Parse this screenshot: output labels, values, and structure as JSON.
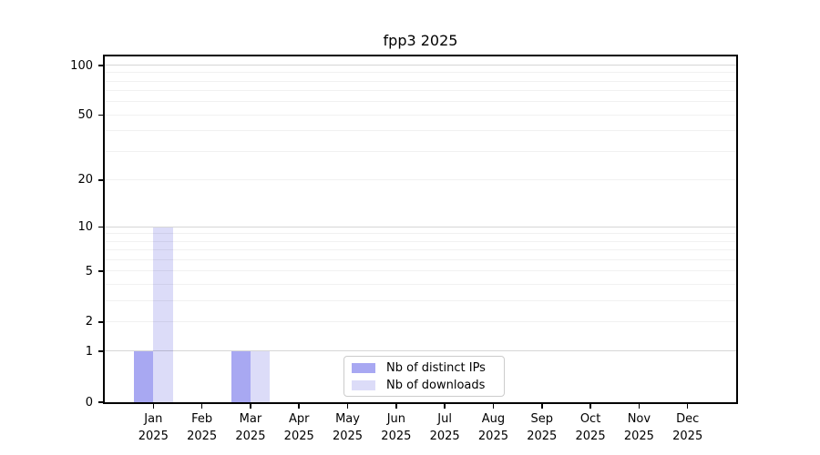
{
  "figure": {
    "background": "#ffffff"
  },
  "chart_data": {
    "type": "bar",
    "title": "fpp3 2025",
    "categories": [
      "Jan",
      "Feb",
      "Mar",
      "Apr",
      "May",
      "Jun",
      "Jul",
      "Aug",
      "Sep",
      "Oct",
      "Nov",
      "Dec"
    ],
    "category_year": "2025",
    "series": [
      {
        "name": "Nb of distinct IPs",
        "color": "#a8a8f2",
        "values": [
          1,
          0,
          1,
          0,
          0,
          0,
          0,
          0,
          0,
          0,
          0,
          0
        ]
      },
      {
        "name": "Nb of downloads",
        "color": "#dcdcf8",
        "values": [
          10,
          0,
          1,
          0,
          0,
          0,
          0,
          0,
          0,
          0,
          0,
          0
        ]
      }
    ],
    "xlabel": "",
    "ylabel": "",
    "y_scale": "log1p",
    "y_ticks": [
      0,
      1,
      2,
      5,
      10,
      20,
      50,
      100
    ],
    "ylim": [
      0,
      113
    ],
    "grid": true,
    "grid_values": [
      1,
      2,
      3,
      4,
      5,
      6,
      7,
      8,
      9,
      10,
      20,
      30,
      40,
      50,
      60,
      70,
      80,
      90,
      100
    ],
    "grid_major_values": [
      1,
      10,
      100
    ],
    "legend_position": "lower-center"
  }
}
